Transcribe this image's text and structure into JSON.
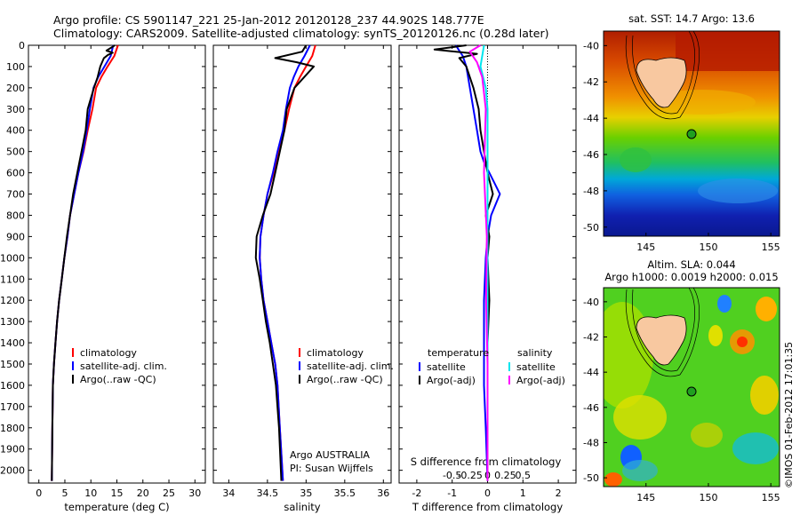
{
  "title_line1": "Argo profile: CS 5901147_221 25-Jan-2012 20120128_237 44.902S 148.777E",
  "title_line2": "Climatology: CARS2009. Satellite-adjusted climatology: synTS_20120126.nc (0.28d later)",
  "credit": "©IMOS 01-Feb-2012 17:01:35",
  "colors": {
    "climatology": "#ff0000",
    "satellite": "#0000ff",
    "argo": "#000000",
    "sat_salinity": "#00e5ee",
    "argo_salinity": "#ff00ff"
  },
  "depth_ticks": [
    "0",
    "100",
    "200",
    "300",
    "400",
    "500",
    "600",
    "700",
    "800",
    "900",
    "1000",
    "1100",
    "1200",
    "1300",
    "1400",
    "1500",
    "1600",
    "1700",
    "1800",
    "1900",
    "2000"
  ],
  "panel_temp": {
    "xlabel": "temperature (deg C)",
    "xticks": [
      "0",
      "5",
      "10",
      "15",
      "20",
      "25",
      "30"
    ],
    "legend": [
      "climatology",
      "satellite-adj. clim.",
      "Argo(..raw -QC)"
    ]
  },
  "panel_sal": {
    "xlabel": "salinity",
    "xticks": [
      "34",
      "34.5",
      "35",
      "35.5",
      "36"
    ],
    "legend": [
      "climatology",
      "satellite-adj. clim.",
      "Argo(..raw -QC)"
    ],
    "note1": "Argo AUSTRALIA",
    "note2": "PI: Susan Wijffels"
  },
  "panel_diff": {
    "xlabel": "T difference from climatology",
    "xticks": [
      "-2",
      "-1",
      "0",
      "1",
      "2"
    ],
    "top_label": "S difference from climatology",
    "top_ticks": [
      "-0.5",
      "-0.25",
      "0",
      "0.25",
      "0.5"
    ],
    "legend_t_head": "temperature",
    "legend_s_head": "salinity",
    "legend_t": [
      "satellite",
      "Argo(-adj)"
    ],
    "legend_s": [
      "satellite",
      "Argo(-adj)"
    ]
  },
  "map_sst": {
    "title": "sat. SST: 14.7 Argo: 13.6",
    "yticks": [
      "-40",
      "-42",
      "-44",
      "-46",
      "-48",
      "-50"
    ],
    "xticks": [
      "145",
      "150",
      "155"
    ]
  },
  "map_sla": {
    "title1": "Altim. SLA: 0.044",
    "title2": "Argo h1000: 0.0019 h2000: 0.015",
    "yticks": [
      "-40",
      "-42",
      "-44",
      "-46",
      "-48",
      "-50"
    ],
    "xticks": [
      "145",
      "150",
      "155"
    ]
  },
  "chart_data": [
    {
      "type": "line",
      "title": "",
      "xlabel": "temperature (deg C)",
      "ylabel": "",
      "xlim": [
        -2,
        32
      ],
      "ylim": [
        2060,
        0
      ],
      "series": [
        {
          "name": "climatology",
          "x": [
            15.2,
            14.5,
            13.2,
            12.0,
            11.0,
            10.3,
            9.4,
            8.6,
            7.6,
            6.8,
            6.0,
            5.5,
            4.9,
            4.4,
            3.9,
            3.5,
            3.2,
            2.9,
            2.7,
            2.6,
            2.5
          ],
          "y": [
            0,
            50,
            100,
            150,
            200,
            300,
            400,
            500,
            600,
            700,
            800,
            900,
            1000,
            1100,
            1200,
            1300,
            1400,
            1500,
            1600,
            1800,
            2050
          ]
        },
        {
          "name": "satellite-adj. clim.",
          "x": [
            14.3,
            13.8,
            12.6,
            11.4,
            10.5,
            9.8,
            9.2,
            8.5,
            7.6,
            6.8,
            6.0,
            5.5,
            4.9,
            4.4,
            3.9,
            3.5,
            3.2,
            2.9,
            2.7,
            2.6,
            2.5
          ],
          "y": [
            0,
            50,
            100,
            150,
            200,
            300,
            400,
            500,
            600,
            700,
            800,
            900,
            1000,
            1100,
            1200,
            1300,
            1400,
            1500,
            1600,
            1800,
            2050
          ]
        },
        {
          "name": "Argo(..raw -QC)",
          "x": [
            14.6,
            13.0,
            14.2,
            13.3,
            12.5,
            11.8,
            11.3,
            10.6,
            10.0,
            9.4,
            9.0,
            8.2,
            7.4,
            6.6,
            6.0,
            5.4,
            4.9,
            4.4,
            3.9,
            3.5,
            3.2,
            2.9,
            2.7,
            2.6,
            2.5
          ],
          "y": [
            0,
            25,
            35,
            45,
            60,
            100,
            150,
            200,
            250,
            300,
            400,
            500,
            600,
            700,
            800,
            900,
            1000,
            1100,
            1200,
            1300,
            1400,
            1500,
            1600,
            1800,
            2050
          ]
        }
      ]
    },
    {
      "type": "line",
      "title": "",
      "xlabel": "salinity",
      "ylabel": "",
      "xlim": [
        33.8,
        36.1
      ],
      "ylim": [
        2060,
        0
      ],
      "series": [
        {
          "name": "climatology",
          "x": [
            35.12,
            35.08,
            35.0,
            34.92,
            34.85,
            34.78,
            34.72,
            34.64,
            34.58,
            34.5,
            34.45,
            34.41,
            34.4,
            34.42,
            34.45,
            34.5,
            34.55,
            34.6,
            34.63,
            34.66,
            34.7
          ],
          "y": [
            0,
            50,
            100,
            150,
            200,
            300,
            400,
            500,
            600,
            700,
            800,
            900,
            1000,
            1100,
            1200,
            1300,
            1400,
            1500,
            1600,
            1800,
            2050
          ]
        },
        {
          "name": "satellite-adj. clim.",
          "x": [
            35.05,
            34.98,
            34.9,
            34.84,
            34.79,
            34.74,
            34.7,
            34.63,
            34.57,
            34.5,
            34.45,
            34.41,
            34.4,
            34.42,
            34.45,
            34.5,
            34.55,
            34.6,
            34.63,
            34.66,
            34.7
          ],
          "y": [
            0,
            50,
            100,
            150,
            200,
            300,
            400,
            500,
            600,
            700,
            800,
            900,
            1000,
            1100,
            1200,
            1300,
            1400,
            1500,
            1600,
            1800,
            2050
          ]
        },
        {
          "name": "Argo(..raw -QC)",
          "x": [
            35.0,
            34.95,
            34.6,
            34.88,
            35.1,
            34.85,
            34.75,
            34.72,
            34.66,
            34.6,
            34.54,
            34.44,
            34.36,
            34.35,
            34.4,
            34.44,
            34.48,
            34.53,
            34.57,
            34.61,
            34.65,
            34.68
          ],
          "y": [
            0,
            30,
            60,
            80,
            100,
            200,
            300,
            400,
            500,
            600,
            700,
            800,
            900,
            1000,
            1100,
            1200,
            1300,
            1400,
            1500,
            1600,
            1800,
            2050
          ]
        }
      ]
    },
    {
      "type": "line",
      "title": "",
      "xlabel": "T difference from climatology",
      "ylabel": "",
      "xlim": [
        -2.5,
        2.5
      ],
      "ylim": [
        2060,
        0
      ],
      "series": [
        {
          "name": "temperature satellite",
          "x": [
            -0.9,
            -0.7,
            -0.6,
            -0.5,
            -0.4,
            -0.3,
            -0.2,
            -0.1,
            0.2,
            0.35,
            0.1,
            0.0,
            -0.05,
            -0.1,
            -0.1,
            -0.1,
            -0.05,
            0.0
          ],
          "y": [
            0,
            50,
            100,
            200,
            300,
            400,
            500,
            550,
            650,
            700,
            800,
            900,
            1000,
            1200,
            1400,
            1600,
            1800,
            2050
          ]
        },
        {
          "name": "temperature Argo(-adj)",
          "x": [
            -0.6,
            -1.5,
            -0.3,
            -0.8,
            -0.6,
            -0.4,
            -0.25,
            -0.2,
            -0.1,
            0.0,
            0.15,
            -0.05,
            0.05,
            0.0,
            0.05,
            0.0,
            0.0,
            0.0
          ],
          "y": [
            0,
            20,
            40,
            60,
            100,
            200,
            300,
            400,
            500,
            600,
            700,
            800,
            900,
            1000,
            1200,
            1400,
            1700,
            2050
          ]
        },
        {
          "name": "salinity satellite",
          "x": [
            -0.1,
            -0.15,
            -0.2,
            -0.05,
            0.0,
            0.0,
            0.0,
            0.0,
            0.0,
            0.0,
            0.0
          ],
          "y": [
            0,
            50,
            100,
            200,
            300,
            500,
            800,
            1100,
            1400,
            1700,
            2050
          ]
        },
        {
          "name": "salinity Argo(-adj)",
          "x": [
            -0.2,
            -0.5,
            -0.3,
            -0.15,
            -0.05,
            -0.1,
            -0.02,
            -0.04,
            0.0,
            0.0,
            0.0
          ],
          "y": [
            0,
            30,
            80,
            150,
            300,
            600,
            900,
            1200,
            1500,
            1800,
            2050
          ]
        }
      ]
    }
  ]
}
